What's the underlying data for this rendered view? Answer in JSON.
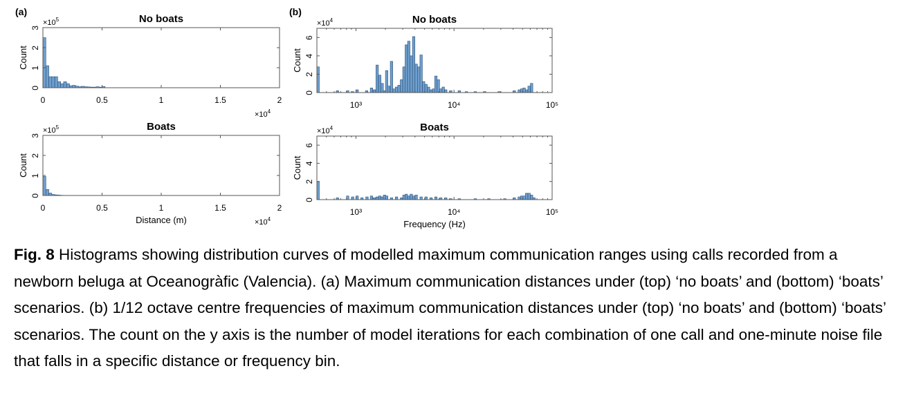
{
  "panel_labels": [
    "(a)",
    "(b)"
  ],
  "caption": {
    "label": "Fig. 8",
    "text": "Histograms showing distribution curves of modelled maximum communication ranges using calls recorded from a newborn beluga at Oceanogràfic (Valencia). (a) Maximum communication distances under (top) ‘no boats’ and (bottom) ‘boats’ scenarios. (b) 1/12 octave centre frequencies of maximum communication distances under (top) ‘no boats’ and (bottom) ‘boats’ scenarios. The count on the y axis is the number of model iterations for each combination of one call and one-minute noise file that falls in a specific distance or frequency bin."
  },
  "colors": {
    "bar_fill": "#6f9fcd",
    "bar_stroke": "#2a4f78",
    "axis": "#555555"
  },
  "chart_data": [
    {
      "id": "a-top",
      "type": "bar",
      "panel": "(a)",
      "title": "No boats",
      "xlabel": "",
      "ylabel": "Count",
      "y_multiplier": "×10^5",
      "x_multiplier": "×10^4",
      "xlim": [
        0,
        2
      ],
      "ylim": [
        0,
        3
      ],
      "xticks": [
        0,
        0.5,
        1,
        1.5,
        2
      ],
      "xtick_labels": [
        "0",
        "0.5",
        "1",
        "1.5",
        "2"
      ],
      "yticks": [
        0,
        1,
        2,
        3
      ],
      "ytick_labels": [
        "0",
        "1",
        "2",
        "3"
      ],
      "bin_width": 0.025,
      "x": [
        0,
        0.025,
        0.05,
        0.075,
        0.1,
        0.125,
        0.15,
        0.175,
        0.2,
        0.225,
        0.25,
        0.275,
        0.3,
        0.325,
        0.35,
        0.375,
        0.4,
        0.425,
        0.45,
        0.475,
        0.5
      ],
      "values": [
        2.5,
        1.1,
        0.55,
        0.55,
        0.55,
        0.3,
        0.2,
        0.3,
        0.2,
        0.1,
        0.12,
        0.08,
        0.05,
        0.07,
        0.05,
        0.04,
        0.03,
        0.03,
        0.05,
        0.03,
        0.06
      ]
    },
    {
      "id": "a-bottom",
      "type": "bar",
      "panel": "",
      "title": "Boats",
      "xlabel": "Distance (m)",
      "ylabel": "Count",
      "y_multiplier": "×10^5",
      "x_multiplier": "×10^4",
      "xlim": [
        0,
        2
      ],
      "ylim": [
        0,
        3
      ],
      "xticks": [
        0,
        0.5,
        1,
        1.5,
        2
      ],
      "xtick_labels": [
        "0",
        "0.5",
        "1",
        "1.5",
        "2"
      ],
      "yticks": [
        0,
        1,
        2,
        3
      ],
      "ytick_labels": [
        "0",
        "1",
        "2",
        "3"
      ],
      "bin_width": 0.025,
      "x": [
        0,
        0.025,
        0.05,
        0.075,
        0.1,
        0.125,
        0.15
      ],
      "values": [
        0.95,
        0.3,
        0.12,
        0.05,
        0.03,
        0.02,
        0.01
      ]
    },
    {
      "id": "b-top",
      "type": "bar",
      "panel": "(b)",
      "xscale": "log",
      "title": "No boats",
      "xlabel": "",
      "ylabel": "Count",
      "y_multiplier": "×10^4",
      "xlim": [
        400,
        100000
      ],
      "ylim": [
        0,
        7
      ],
      "xticks": [
        1000,
        10000,
        100000
      ],
      "xtick_labels": [
        "10³",
        "10⁴",
        "10⁵"
      ],
      "yticks": [
        0,
        2,
        4,
        6
      ],
      "ytick_labels": [
        "0",
        "2",
        "4",
        "6"
      ],
      "bin_ratio": 1.059,
      "x": [
        400,
        630,
        800,
        900,
        1000,
        1250,
        1400,
        1500,
        1600,
        1700,
        1800,
        1900,
        2000,
        2100,
        2240,
        2380,
        2520,
        2670,
        2830,
        3000,
        3170,
        3360,
        3560,
        3770,
        4000,
        4240,
        4490,
        4760,
        5040,
        5340,
        5660,
        6000,
        6350,
        6730,
        7130,
        7550,
        8000,
        9000,
        11000,
        13000,
        16000,
        20000,
        28000,
        40000,
        44900,
        47600,
        50400,
        53400,
        56600,
        60000
      ],
      "values": [
        2.8,
        0.2,
        0.2,
        0.1,
        0.3,
        0.2,
        0.5,
        0.3,
        3.0,
        1.9,
        1.0,
        0.2,
        2.4,
        0.7,
        3.4,
        0.4,
        0.6,
        0.8,
        1.4,
        2.8,
        5.2,
        5.6,
        4.0,
        6.1,
        3.1,
        2.8,
        4.1,
        1.2,
        0.9,
        0.6,
        0.3,
        0.4,
        1.8,
        1.4,
        0.4,
        0.6,
        0.3,
        0.2,
        0.2,
        0.1,
        0.1,
        0.1,
        0.1,
        0.2,
        0.3,
        0.4,
        0.5,
        0.3,
        0.7,
        1.0
      ]
    },
    {
      "id": "b-bottom",
      "type": "bar",
      "panel": "",
      "xscale": "log",
      "title": "Boats",
      "xlabel": "Frequency (Hz)",
      "ylabel": "Count",
      "y_multiplier": "×10^4",
      "xlim": [
        400,
        100000
      ],
      "ylim": [
        0,
        7
      ],
      "xticks": [
        1000,
        10000,
        100000
      ],
      "xtick_labels": [
        "10³",
        "10⁴",
        "10⁵"
      ],
      "yticks": [
        0,
        2,
        4,
        6
      ],
      "ytick_labels": [
        "0",
        "2",
        "4",
        "6"
      ],
      "bin_ratio": 1.059,
      "x": [
        400,
        630,
        800,
        900,
        1000,
        1120,
        1260,
        1400,
        1500,
        1600,
        1700,
        1800,
        1900,
        2000,
        2240,
        2520,
        2830,
        3000,
        3170,
        3360,
        3560,
        3770,
        4000,
        4490,
        5040,
        5660,
        6350,
        7130,
        8000,
        9000,
        11000,
        16000,
        22000,
        32000,
        40000,
        44900,
        47600,
        50400,
        53400,
        56600,
        60000,
        63500
      ],
      "values": [
        2.0,
        0.2,
        0.4,
        0.3,
        0.4,
        0.2,
        0.3,
        0.4,
        0.2,
        0.3,
        0.4,
        0.3,
        0.5,
        0.4,
        0.2,
        0.3,
        0.2,
        0.5,
        0.6,
        0.4,
        0.6,
        0.4,
        0.5,
        0.3,
        0.3,
        0.2,
        0.3,
        0.2,
        0.2,
        0.1,
        0.1,
        0.1,
        0.1,
        0.1,
        0.2,
        0.3,
        0.4,
        0.4,
        0.7,
        0.7,
        0.5,
        0.2
      ]
    }
  ]
}
